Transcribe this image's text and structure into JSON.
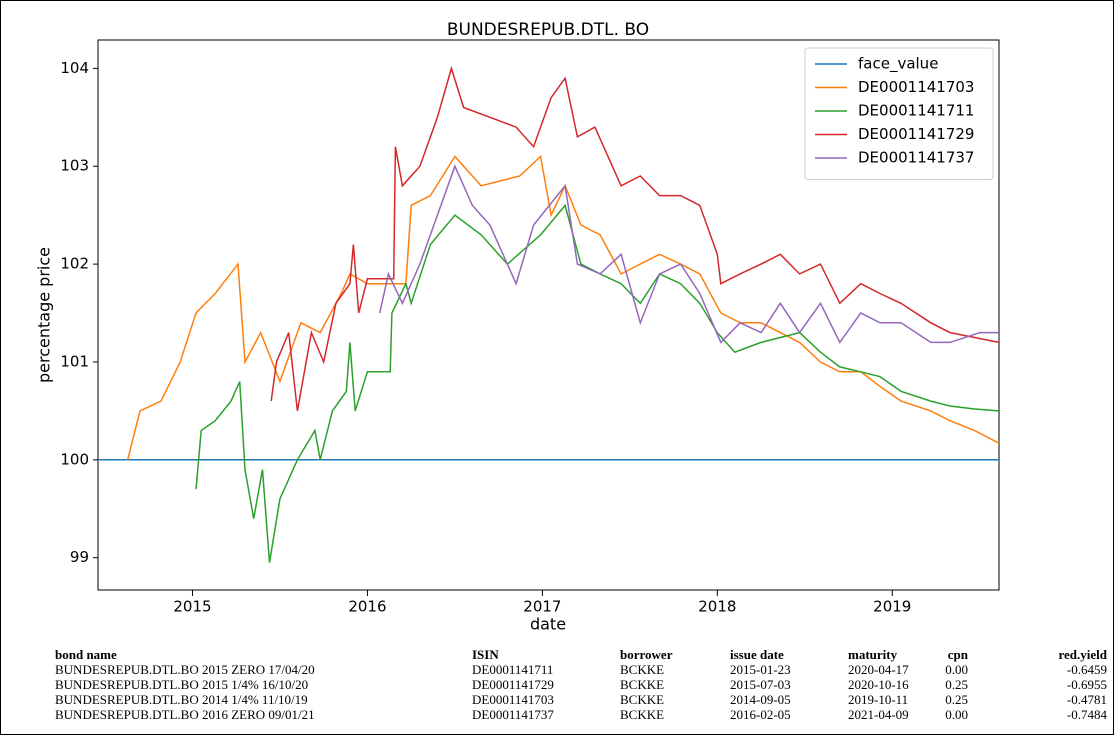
{
  "chart_data": {
    "type": "line",
    "title": "BUNDESREPUB.DTL. BO",
    "x_label": "date",
    "y_label": "percentage price",
    "xlim": [
      2014.46,
      2019.61
    ],
    "ylim": [
      98.67,
      104.29
    ],
    "xticks": [
      2015,
      2016,
      2017,
      2018,
      2019
    ],
    "yticks": [
      99,
      100,
      101,
      102,
      103,
      104
    ],
    "legend": "upper right",
    "series": [
      {
        "name": "face_value",
        "color": "#1f77b4",
        "x": [
          2014.46,
          2019.61
        ],
        "values": [
          100,
          100
        ]
      },
      {
        "name": "DE0001141703",
        "color": "#ff7f0e",
        "x": [
          2014.63,
          2014.7,
          2014.82,
          2014.93,
          2015.02,
          2015.13,
          2015.26,
          2015.3,
          2015.39,
          2015.5,
          2015.62,
          2015.73,
          2015.85,
          2015.9,
          2016.0,
          2016.22,
          2016.25,
          2016.36,
          2016.5,
          2016.65,
          2016.87,
          2016.99,
          2017.05,
          2017.13,
          2017.22,
          2017.33,
          2017.45,
          2017.56,
          2017.67,
          2017.79,
          2017.9,
          2018.02,
          2018.13,
          2018.25,
          2018.36,
          2018.47,
          2018.59,
          2018.7,
          2018.82,
          2018.93,
          2019.05,
          2019.22,
          2019.33,
          2019.47,
          2019.61
        ],
        "values": [
          100.0,
          100.5,
          100.6,
          101.0,
          101.5,
          101.7,
          102.0,
          101.0,
          101.3,
          100.8,
          101.4,
          101.3,
          101.7,
          101.9,
          101.8,
          101.8,
          102.6,
          102.7,
          103.1,
          102.8,
          102.9,
          103.1,
          102.5,
          102.8,
          102.4,
          102.3,
          101.9,
          102.0,
          102.1,
          102.0,
          101.9,
          101.5,
          101.4,
          101.4,
          101.3,
          101.2,
          101.0,
          100.9,
          100.9,
          100.75,
          100.6,
          100.5,
          100.4,
          100.3,
          100.17
        ]
      },
      {
        "name": "DE0001141711",
        "color": "#2ca02c",
        "x": [
          2015.02,
          2015.05,
          2015.13,
          2015.22,
          2015.27,
          2015.3,
          2015.35,
          2015.4,
          2015.44,
          2015.5,
          2015.6,
          2015.7,
          2015.73,
          2015.8,
          2015.88,
          2015.9,
          2015.93,
          2016.0,
          2016.13,
          2016.14,
          2016.22,
          2016.25,
          2016.36,
          2016.5,
          2016.65,
          2016.8,
          2016.99,
          2017.13,
          2017.22,
          2017.33,
          2017.45,
          2017.56,
          2017.67,
          2017.79,
          2017.9,
          2018.0,
          2018.1,
          2018.25,
          2018.47,
          2018.59,
          2018.7,
          2018.82,
          2018.93,
          2019.05,
          2019.22,
          2019.33,
          2019.47,
          2019.61
        ],
        "values": [
          99.7,
          100.3,
          100.4,
          100.6,
          100.8,
          99.9,
          99.4,
          99.9,
          98.95,
          99.6,
          100.0,
          100.3,
          100.0,
          100.5,
          100.7,
          101.2,
          100.5,
          100.9,
          100.9,
          101.5,
          101.8,
          101.6,
          102.2,
          102.5,
          102.3,
          102.0,
          102.3,
          102.6,
          102.0,
          101.9,
          101.8,
          101.6,
          101.9,
          101.8,
          101.6,
          101.3,
          101.1,
          101.2,
          101.3,
          101.1,
          100.95,
          100.9,
          100.85,
          100.7,
          100.6,
          100.55,
          100.52,
          100.5
        ]
      },
      {
        "name": "DE0001141729",
        "color": "#d62728",
        "x": [
          2015.45,
          2015.48,
          2015.55,
          2015.6,
          2015.68,
          2015.75,
          2015.82,
          2015.9,
          2015.92,
          2015.95,
          2016.0,
          2016.15,
          2016.16,
          2016.2,
          2016.3,
          2016.4,
          2016.48,
          2016.55,
          2016.7,
          2016.85,
          2016.95,
          2017.05,
          2017.13,
          2017.2,
          2017.3,
          2017.45,
          2017.56,
          2017.67,
          2017.79,
          2017.9,
          2018.0,
          2018.02,
          2018.13,
          2018.25,
          2018.36,
          2018.47,
          2018.59,
          2018.7,
          2018.82,
          2018.93,
          2019.05,
          2019.22,
          2019.33,
          2019.47,
          2019.61
        ],
        "values": [
          100.6,
          101.0,
          101.3,
          100.5,
          101.3,
          101.0,
          101.6,
          101.8,
          102.2,
          101.5,
          101.85,
          101.85,
          103.2,
          102.8,
          103.0,
          103.5,
          104.0,
          103.6,
          103.5,
          103.4,
          103.2,
          103.7,
          103.9,
          103.3,
          103.4,
          102.8,
          102.9,
          102.7,
          102.7,
          102.6,
          102.1,
          101.8,
          101.9,
          102.0,
          102.1,
          101.9,
          102.0,
          101.6,
          101.8,
          101.7,
          101.6,
          101.4,
          101.3,
          101.25,
          101.2
        ]
      },
      {
        "name": "DE0001141737",
        "color": "#9467bd",
        "x": [
          2016.07,
          2016.12,
          2016.2,
          2016.3,
          2016.4,
          2016.5,
          2016.6,
          2016.7,
          2016.85,
          2016.95,
          2017.13,
          2017.2,
          2017.33,
          2017.45,
          2017.56,
          2017.67,
          2017.79,
          2017.9,
          2018.02,
          2018.13,
          2018.25,
          2018.36,
          2018.47,
          2018.59,
          2018.7,
          2018.82,
          2018.93,
          2019.05,
          2019.22,
          2019.33,
          2019.5,
          2019.61
        ],
        "values": [
          101.5,
          101.9,
          101.6,
          102.0,
          102.5,
          103.0,
          102.6,
          102.4,
          101.8,
          102.4,
          102.8,
          102.0,
          101.9,
          102.1,
          101.4,
          101.9,
          102.0,
          101.7,
          101.2,
          101.4,
          101.3,
          101.6,
          101.3,
          101.6,
          101.2,
          101.5,
          101.4,
          101.4,
          101.2,
          101.2,
          101.3,
          101.3
        ]
      }
    ]
  },
  "table": {
    "columns": [
      "bond name",
      "ISIN",
      "borrower",
      "issue date",
      "maturity",
      "cpn",
      "red.yield"
    ],
    "rows": [
      [
        "BUNDESREPUB.DTL.BO 2015 ZERO 17/04/20",
        "DE0001141711",
        "BCKKE",
        "2015-01-23",
        "2020-04-17",
        "0.00",
        "-0.6459"
      ],
      [
        "BUNDESREPUB.DTL.BO 2015 1/4% 16/10/20",
        "DE0001141729",
        "BCKKE",
        "2015-07-03",
        "2020-10-16",
        "0.25",
        "-0.6955"
      ],
      [
        "BUNDESREPUB.DTL.BO 2014 1/4% 11/10/19",
        "DE0001141703",
        "BCKKE",
        "2014-09-05",
        "2019-10-11",
        "0.25",
        "-0.4781"
      ],
      [
        "BUNDESREPUB.DTL.BO 2016 ZERO 09/01/21",
        "DE0001141737",
        "BCKKE",
        "2016-02-05",
        "2021-04-09",
        "0.00",
        "-0.7484"
      ]
    ]
  }
}
